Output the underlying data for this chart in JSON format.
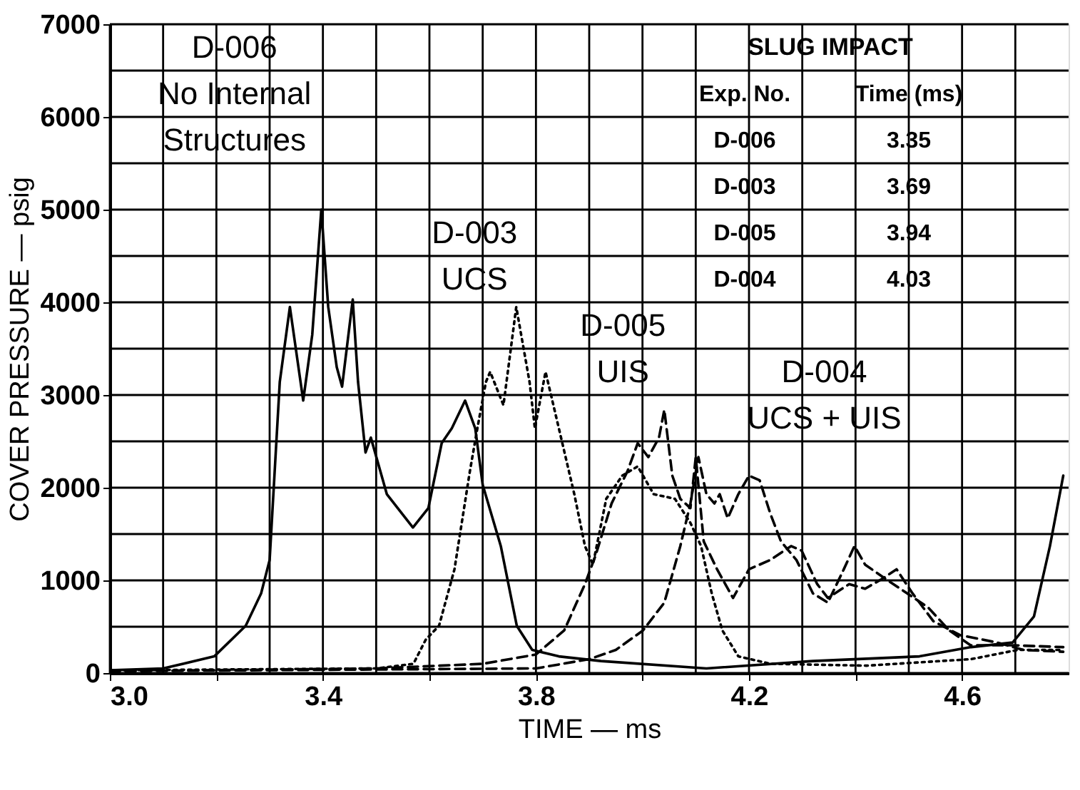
{
  "chart_data": {
    "type": "line",
    "xlabel": "TIME — ms",
    "ylabel": "COVER PRESSURE — psig",
    "xlim": [
      3.0,
      4.8
    ],
    "ylim": [
      0,
      7000
    ],
    "xticks": [
      {
        "value": 3,
        "label": "3.0"
      },
      {
        "value": 3.1,
        "label": null
      },
      {
        "value": 3.2,
        "label": null
      },
      {
        "value": 3.3,
        "label": null
      },
      {
        "value": 3.4,
        "label": "3.4"
      },
      {
        "value": 3.5,
        "label": null
      },
      {
        "value": 3.6,
        "label": null
      },
      {
        "value": 3.7,
        "label": null
      },
      {
        "value": 3.8,
        "label": "3.8"
      },
      {
        "value": 3.9,
        "label": null
      },
      {
        "value": 4.0,
        "label": null
      },
      {
        "value": 4.1,
        "label": null
      },
      {
        "value": 4.2,
        "label": "4.2"
      },
      {
        "value": 4.3,
        "label": null
      },
      {
        "value": 4.4,
        "label": null
      },
      {
        "value": 4.5,
        "label": null
      },
      {
        "value": 4.6,
        "label": "4.6"
      },
      {
        "value": 4.7,
        "label": null
      }
    ],
    "yticks": [
      0,
      {
        "value": 500,
        "label": null
      },
      1000,
      {
        "value": 1500,
        "label": null
      },
      2000,
      {
        "value": 2500,
        "label": null
      },
      3000,
      {
        "value": 3500,
        "label": null
      },
      4000,
      {
        "value": 4500,
        "label": null
      },
      5000,
      {
        "value": 5500,
        "label": null
      },
      6000,
      {
        "value": 6500,
        "label": null
      },
      7000
    ],
    "grid": true,
    "series": [
      {
        "color": "#000000",
        "line_style": "solid",
        "x": [
          3.0,
          3.1,
          3.196,
          3.255,
          3.284,
          3.3,
          3.309,
          3.319,
          3.338,
          3.363,
          3.38,
          3.397,
          3.41,
          3.426,
          3.436,
          3.456,
          3.466,
          3.48,
          3.49,
          3.52,
          3.569,
          3.598,
          3.623,
          3.642,
          3.667,
          3.686,
          3.7,
          3.734,
          3.764,
          3.793,
          3.843,
          3.922,
          4.12,
          4.32,
          4.52,
          4.617,
          4.695,
          4.735,
          4.765,
          4.79
        ],
        "values": [
          30,
          50,
          180,
          510,
          860,
          1220,
          2130,
          3140,
          3950,
          2940,
          3650,
          5000,
          3950,
          3300,
          3090,
          4030,
          3140,
          2380,
          2540,
          1930,
          1570,
          1780,
          2480,
          2640,
          2940,
          2640,
          2030,
          1370,
          510,
          250,
          180,
          130,
          50,
          130,
          180,
          280,
          330,
          610,
          1370,
          2130
        ]
      },
      {
        "color": "#000000",
        "line_style": "dotted",
        "x": [
          3.0,
          3.5,
          3.57,
          3.593,
          3.618,
          3.647,
          3.676,
          3.69,
          3.706,
          3.714,
          3.739,
          3.763,
          3.788,
          3.798,
          3.818,
          3.843,
          3.872,
          3.892,
          3.907,
          3.932,
          3.962,
          3.991,
          4.021,
          4.061,
          4.09,
          4.11,
          4.13,
          4.15,
          4.18,
          4.24,
          4.42,
          4.617,
          4.705,
          4.79
        ],
        "values": [
          30,
          50,
          100,
          360,
          510,
          1120,
          2180,
          2640,
          3140,
          3250,
          2890,
          3950,
          3140,
          2640,
          3250,
          2640,
          1930,
          1370,
          1170,
          1880,
          2130,
          2230,
          1930,
          1880,
          1620,
          1370,
          860,
          460,
          180,
          100,
          80,
          150,
          250,
          250
        ]
      },
      {
        "color": "#000000",
        "line_style": "dashed",
        "x": [
          3.0,
          3.5,
          3.7,
          3.8,
          3.853,
          3.892,
          3.912,
          3.942,
          3.972,
          3.991,
          4.011,
          4.031,
          4.041,
          4.056,
          4.071,
          4.09,
          4.1,
          4.115,
          4.14,
          4.17,
          4.2,
          4.24,
          4.279,
          4.299,
          4.328,
          4.348,
          4.388,
          4.418,
          4.448,
          4.477,
          4.507,
          4.546,
          4.596,
          4.665,
          4.715,
          4.79
        ],
        "values": [
          20,
          50,
          100,
          200,
          460,
          960,
          1270,
          1830,
          2180,
          2480,
          2330,
          2540,
          2840,
          2130,
          1880,
          1780,
          2330,
          1420,
          1120,
          810,
          1120,
          1220,
          1370,
          1320,
          960,
          810,
          960,
          910,
          1010,
          1120,
          860,
          560,
          410,
          330,
          250,
          230
        ]
      },
      {
        "color": "#000000",
        "line_style": "dashed",
        "x": [
          3.0,
          3.8,
          3.9,
          3.95,
          4.001,
          4.041,
          4.071,
          4.09,
          4.105,
          4.12,
          4.135,
          4.145,
          4.16,
          4.18,
          4.2,
          4.22,
          4.24,
          4.26,
          4.289,
          4.32,
          4.348,
          4.378,
          4.398,
          4.418,
          4.458,
          4.497,
          4.536,
          4.576,
          4.616,
          4.695,
          4.79
        ],
        "values": [
          20,
          50,
          150,
          250,
          460,
          760,
          1370,
          1830,
          2330,
          1930,
          1830,
          1930,
          1670,
          1930,
          2130,
          2080,
          1720,
          1420,
          1220,
          860,
          760,
          1120,
          1370,
          1170,
          1010,
          860,
          710,
          460,
          300,
          300,
          280
        ]
      }
    ],
    "annotations": [
      {
        "text": "D-006\nNo Internal\nStructures",
        "x": 3.4,
        "y": 5000
      },
      {
        "text": "D-003\nUCS",
        "x": 3.765,
        "y": 3950
      },
      {
        "text": "D-005\nUIS",
        "x": 3.99,
        "y": 2250
      },
      {
        "text": "D-004\nUCS + UIS",
        "x": 4.06,
        "y": 1980
      },
      "SLUG IMPACT",
      "Exp. No.",
      "Time (ms)",
      "D-006",
      "3.35",
      "D-003",
      "3.69",
      "D-005",
      "3.94",
      "D-004",
      "4.03"
    ]
  }
}
